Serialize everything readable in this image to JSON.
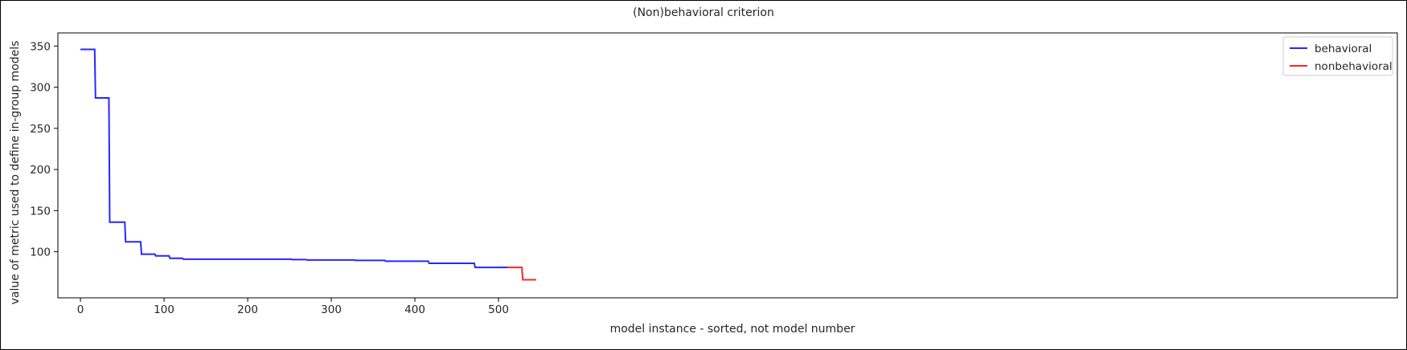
{
  "chart_data": {
    "type": "line",
    "title": "(Non)behavioral criterion",
    "xlabel": "model instance - sorted, not model number",
    "ylabel": "value of metric used to define in-group models",
    "xlim": [
      -27,
      1575
    ],
    "ylim": [
      44,
      366
    ],
    "x_ticks": [
      0,
      100,
      200,
      300,
      400,
      500
    ],
    "y_ticks": [
      100,
      150,
      200,
      250,
      300,
      350
    ],
    "grid": false,
    "legend_position": "top-right",
    "series": [
      {
        "name": "behavioral",
        "color": "#0000ff",
        "points": [
          [
            0,
            346
          ],
          [
            17,
            346
          ],
          [
            18,
            287
          ],
          [
            34,
            287
          ],
          [
            35,
            136
          ],
          [
            53,
            136
          ],
          [
            54,
            112
          ],
          [
            72,
            112
          ],
          [
            73,
            97
          ],
          [
            89,
            97
          ],
          [
            90,
            95
          ],
          [
            106,
            95
          ],
          [
            107,
            92
          ],
          [
            122,
            92
          ],
          [
            123,
            91
          ],
          [
            252,
            91
          ],
          [
            253,
            90.5
          ],
          [
            270,
            90.5
          ],
          [
            271,
            90
          ],
          [
            328,
            90
          ],
          [
            329,
            89.5
          ],
          [
            364,
            89.5
          ],
          [
            365,
            88.5
          ],
          [
            416,
            88.5
          ],
          [
            417,
            86
          ],
          [
            471,
            86
          ],
          [
            472,
            81
          ],
          [
            511,
            81
          ]
        ]
      },
      {
        "name": "nonbehavioral",
        "color": "#ff0000",
        "points": [
          [
            511,
            81
          ],
          [
            528,
            81
          ],
          [
            529,
            66
          ],
          [
            545,
            66
          ]
        ]
      }
    ]
  }
}
